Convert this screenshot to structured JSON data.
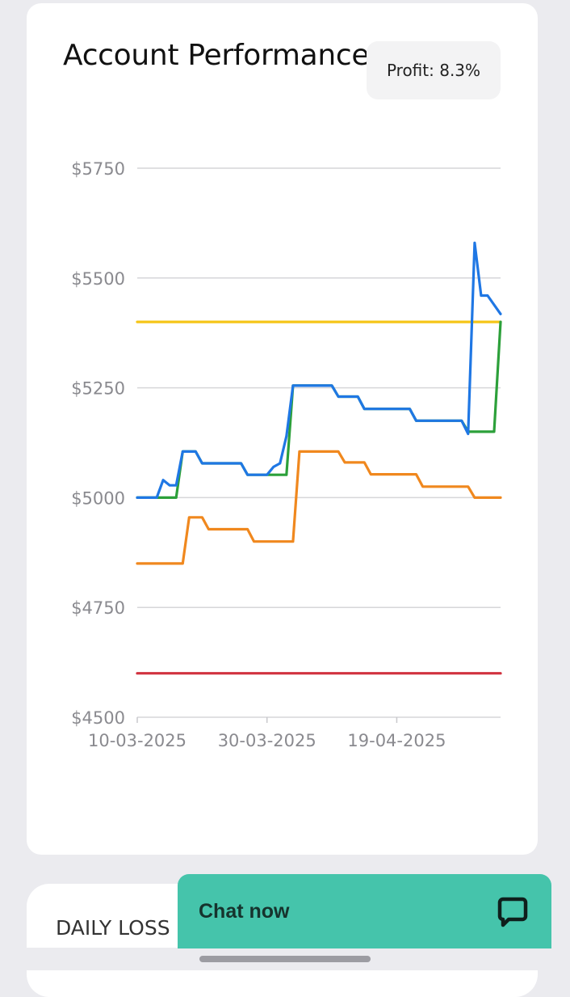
{
  "card": {
    "title": "Account Performance",
    "profit_badge": "Profit: 8.3%"
  },
  "chart_data": {
    "type": "line",
    "title": "Account Performance",
    "ylim": [
      4500,
      5750
    ],
    "y_ticks": [
      4500,
      4750,
      5000,
      5250,
      5500,
      5750
    ],
    "y_tick_labels": [
      "$4500",
      "$4750",
      "$5000",
      "$5250",
      "$5500",
      "$5750"
    ],
    "x_ticks": [
      "10-03-2025",
      "30-03-2025",
      "19-04-2025"
    ],
    "x_tick_dates": [
      "2025-03-10",
      "2025-03-30",
      "2025-04-19"
    ],
    "grid": true,
    "legend": "none",
    "series": [
      {
        "color": "#1f77e4",
        "points": [
          [
            "2025-03-10",
            5000
          ],
          [
            "2025-03-13",
            5000
          ],
          [
            "2025-03-14",
            5040
          ],
          [
            "2025-03-15",
            5028
          ],
          [
            "2025-03-16",
            5028
          ],
          [
            "2025-03-17",
            5105
          ],
          [
            "2025-03-19",
            5105
          ],
          [
            "2025-03-20",
            5078
          ],
          [
            "2025-03-25",
            5078
          ],
          [
            "2025-03-26",
            5078
          ],
          [
            "2025-03-27",
            5052
          ],
          [
            "2025-03-30",
            5052
          ],
          [
            "2025-03-31",
            5070
          ],
          [
            "2025-04-01",
            5078
          ],
          [
            "2025-04-02",
            5140
          ],
          [
            "2025-04-03",
            5255
          ],
          [
            "2025-04-09",
            5255
          ],
          [
            "2025-04-10",
            5230
          ],
          [
            "2025-04-13",
            5230
          ],
          [
            "2025-04-14",
            5202
          ],
          [
            "2025-04-21",
            5202
          ],
          [
            "2025-04-22",
            5175
          ],
          [
            "2025-04-29",
            5175
          ],
          [
            "2025-04-30",
            5145
          ],
          [
            "2025-05-01",
            5580
          ],
          [
            "2025-05-02",
            5460
          ],
          [
            "2025-05-03",
            5460
          ],
          [
            "2025-05-05",
            5418
          ]
        ]
      },
      {
        "color": "#2ca03a",
        "points": [
          [
            "2025-03-10",
            5000
          ],
          [
            "2025-03-16",
            5000
          ],
          [
            "2025-03-17",
            5105
          ],
          [
            "2025-03-19",
            5105
          ],
          [
            "2025-03-20",
            5078
          ],
          [
            "2025-03-26",
            5078
          ],
          [
            "2025-03-27",
            5052
          ],
          [
            "2025-04-02",
            5052
          ],
          [
            "2025-04-03",
            5255
          ],
          [
            "2025-04-09",
            5255
          ],
          [
            "2025-04-10",
            5230
          ],
          [
            "2025-04-13",
            5230
          ],
          [
            "2025-04-14",
            5202
          ],
          [
            "2025-04-21",
            5202
          ],
          [
            "2025-04-22",
            5175
          ],
          [
            "2025-04-29",
            5175
          ],
          [
            "2025-04-30",
            5150
          ],
          [
            "2025-05-04",
            5150
          ],
          [
            "2025-05-05",
            5400
          ]
        ]
      },
      {
        "color": "#f0881e",
        "points": [
          [
            "2025-03-10",
            4850
          ],
          [
            "2025-03-17",
            4850
          ],
          [
            "2025-03-18",
            4955
          ],
          [
            "2025-03-20",
            4955
          ],
          [
            "2025-03-21",
            4928
          ],
          [
            "2025-03-27",
            4928
          ],
          [
            "2025-03-28",
            4900
          ],
          [
            "2025-04-03",
            4900
          ],
          [
            "2025-04-04",
            5105
          ],
          [
            "2025-04-10",
            5105
          ],
          [
            "2025-04-11",
            5080
          ],
          [
            "2025-04-14",
            5080
          ],
          [
            "2025-04-15",
            5053
          ],
          [
            "2025-04-22",
            5053
          ],
          [
            "2025-04-23",
            5025
          ],
          [
            "2025-04-30",
            5025
          ],
          [
            "2025-05-01",
            5000
          ],
          [
            "2025-05-05",
            5000
          ]
        ]
      },
      {
        "color": "#f5c518",
        "points": [
          [
            "2025-03-10",
            5400
          ],
          [
            "2025-05-05",
            5400
          ]
        ]
      },
      {
        "color": "#d1323f",
        "points": [
          [
            "2025-03-10",
            4600
          ],
          [
            "2025-05-05",
            4600
          ]
        ]
      }
    ]
  },
  "daily_loss_card": {
    "title": "DAILY LOSS"
  },
  "chat": {
    "label": "Chat now",
    "icon": "chat-bubble-icon"
  }
}
